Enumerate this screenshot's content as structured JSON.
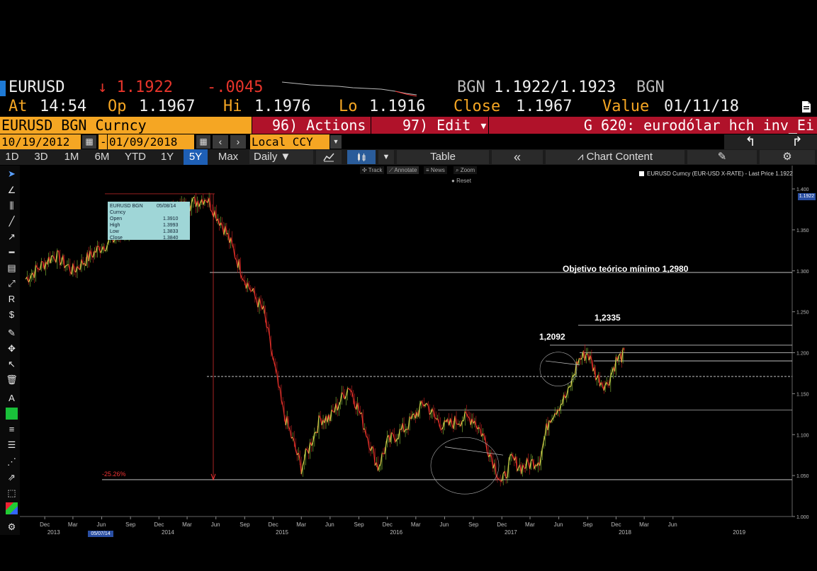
{
  "header": {
    "ticker": "EURUSD",
    "last_price": "↓ 1.1922",
    "change": "-.0045",
    "bid_source": "BGN",
    "bid_ask": "1.1922/1.1923",
    "ask_source": "BGN",
    "time_label": "At",
    "time": "14:54",
    "open_label": "Op",
    "open": "1.1967",
    "high_label": "Hi",
    "high": "1.1976",
    "low_label": "Lo",
    "low": "1.1916",
    "close_label": "Close",
    "close": "1.1967",
    "value_label": "Value",
    "value_date": "01/11/18",
    "pdf_icon": "pdf-export-icon"
  },
  "function_bar": {
    "security": "EURUSD BGN Curncy",
    "actions": "96) Actions ▾",
    "edit": "97) Edit ▾",
    "graph": "G 620: eurodólar hch inv_Ei"
  },
  "date_bar": {
    "start_date": "10/19/2012",
    "separator": "-",
    "end_date": "01/09/2018",
    "currency": "Local CCY",
    "cal_icon": "calendar-icon"
  },
  "toolbar": {
    "periods": [
      {
        "label": "1D",
        "active": false
      },
      {
        "label": "3D",
        "active": false
      },
      {
        "label": "1M",
        "active": false
      },
      {
        "label": "6M",
        "active": false
      },
      {
        "label": "YTD",
        "active": false
      },
      {
        "label": "1Y",
        "active": false
      },
      {
        "label": "5Y",
        "active": true
      },
      {
        "label": "Max",
        "active": false
      }
    ],
    "frequency": "Daily ▼",
    "table": "Table",
    "collapse": "«",
    "chart_content": "Chart Content"
  },
  "chart_controls": {
    "track": "Track",
    "annotate": "Annotate",
    "news": "News",
    "zoom": "Zoom",
    "reset": "Reset"
  },
  "legend": "EURUSD Curncy (EUR-USD X-RATE) - Last Price 1.1922",
  "tooltip": {
    "title": "EURUSD BGN Curncy",
    "date": "05/08/14",
    "rows": [
      {
        "k": "Open",
        "v": "1.3910"
      },
      {
        "k": "High",
        "v": "1.3993"
      },
      {
        "k": "Low",
        "v": "1.3833"
      },
      {
        "k": "Close",
        "v": "1.3840"
      }
    ]
  },
  "annotations": {
    "target": "Objetivo teórico mínimo 1,2980",
    "level_1": "1,2335",
    "level_2": "1,2092",
    "drop_pct": "-25.26%"
  },
  "last_price_tag": "1.1922",
  "highlight_date": "05/07/14",
  "chart_data": {
    "type": "line",
    "title": "",
    "xlabel": "",
    "ylabel": "",
    "y_range": [
      1.0,
      1.4
    ],
    "y_ticks": [
      "1.000",
      "1.050",
      "1.100",
      "1.150",
      "1.200",
      "1.250",
      "1.300",
      "1.350",
      "1.400"
    ],
    "x_month_ticks": [
      "Dec",
      "Mar",
      "Jun",
      "Sep",
      "Dec",
      "Mar",
      "Jun",
      "Sep",
      "Dec",
      "Mar",
      "Jun",
      "Sep",
      "Dec",
      "Mar",
      "Jun",
      "Sep",
      "Dec",
      "Mar",
      "Jun",
      "Sep",
      "Dec",
      "Mar",
      "Jun"
    ],
    "x_year_labels": [
      "2013",
      "2014",
      "2015",
      "2016",
      "2017",
      "2018",
      "2019"
    ],
    "series": [
      {
        "x": [
          "2012-10",
          "2013-01",
          "2013-03",
          "2013-06",
          "2013-09",
          "2013-12",
          "2014-03",
          "2014-05",
          "2014-07",
          "2014-09",
          "2014-11",
          "2015-01",
          "2015-03",
          "2015-05",
          "2015-06",
          "2015-08",
          "2015-09",
          "2015-11",
          "2015-12",
          "2016-02",
          "2016-04",
          "2016-05",
          "2016-06",
          "2016-08",
          "2016-09",
          "2016-10",
          "2016-12",
          "2017-01",
          "2017-02",
          "2017-04",
          "2017-05",
          "2017-07",
          "2017-08",
          "2017-09",
          "2017-10",
          "2017-11",
          "2017-12",
          "2018-01"
        ],
        "y": [
          1.29,
          1.32,
          1.3,
          1.33,
          1.35,
          1.37,
          1.38,
          1.39,
          1.35,
          1.29,
          1.25,
          1.13,
          1.06,
          1.12,
          1.12,
          1.16,
          1.13,
          1.06,
          1.09,
          1.11,
          1.14,
          1.12,
          1.11,
          1.12,
          1.12,
          1.1,
          1.04,
          1.07,
          1.06,
          1.07,
          1.12,
          1.15,
          1.19,
          1.2,
          1.17,
          1.16,
          1.19,
          1.2
        ]
      }
    ],
    "horizontal_levels": [
      1.298,
      1.2335,
      1.2092,
      1.2,
      1.19,
      1.171,
      1.13,
      1.045
    ],
    "grid": false,
    "legend": "top-right"
  }
}
